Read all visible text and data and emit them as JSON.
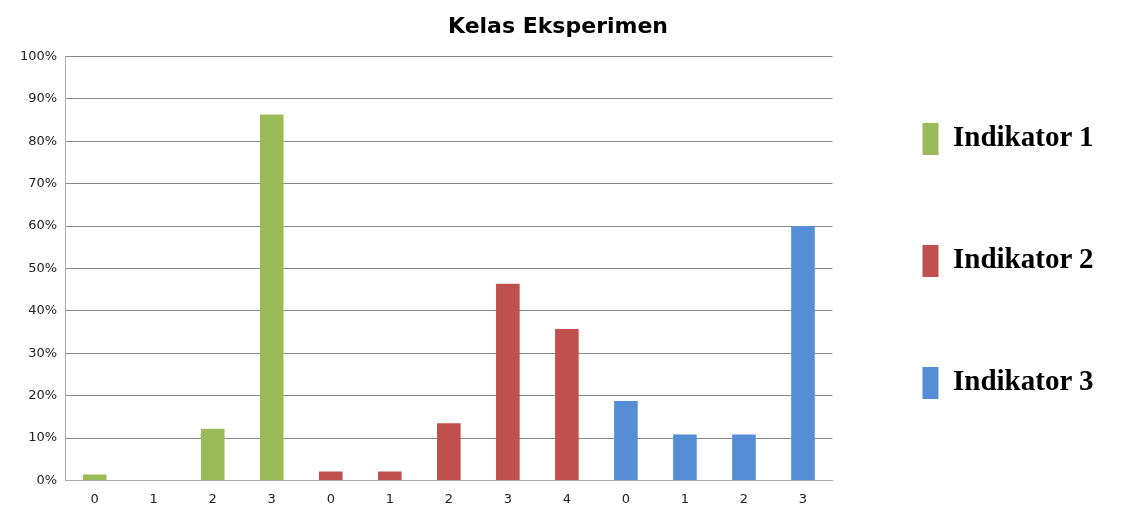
{
  "chart_data": {
    "type": "bar",
    "title": "Kelas Eksperimen",
    "categories": [
      "0",
      "1",
      "2",
      "3",
      "0",
      "1",
      "2",
      "3",
      "4",
      "0",
      "1",
      "2",
      "3"
    ],
    "series": [
      {
        "name": "Indikator 1",
        "color": "#9bbb59",
        "values": [
          1.4,
          0,
          12.2,
          86.3,
          null,
          null,
          null,
          null,
          null,
          null,
          null,
          null,
          null
        ]
      },
      {
        "name": "Indikator 2",
        "color": "#c0504d",
        "values": [
          null,
          null,
          null,
          null,
          2.1,
          2.1,
          13.5,
          46.4,
          35.7,
          null,
          null,
          null,
          null
        ]
      },
      {
        "name": "Indikator 3",
        "color": "#558ed5",
        "values": [
          null,
          null,
          null,
          null,
          null,
          null,
          null,
          null,
          null,
          18.7,
          10.8,
          10.8,
          60
        ]
      }
    ],
    "ylim": [
      0,
      100
    ],
    "yticks": [
      {
        "value": 0,
        "label": "0%"
      },
      {
        "value": 10,
        "label": "10%"
      },
      {
        "value": 20,
        "label": "20%"
      },
      {
        "value": 30,
        "label": "30%"
      },
      {
        "value": 40,
        "label": "40%"
      },
      {
        "value": 50,
        "label": "50%"
      },
      {
        "value": 60,
        "label": "60%"
      },
      {
        "value": 70,
        "label": "70%"
      },
      {
        "value": 80,
        "label": "80%"
      },
      {
        "value": 90,
        "label": "90%"
      },
      {
        "value": 100,
        "label": "100%"
      }
    ],
    "grid": "y",
    "legend": "right"
  }
}
